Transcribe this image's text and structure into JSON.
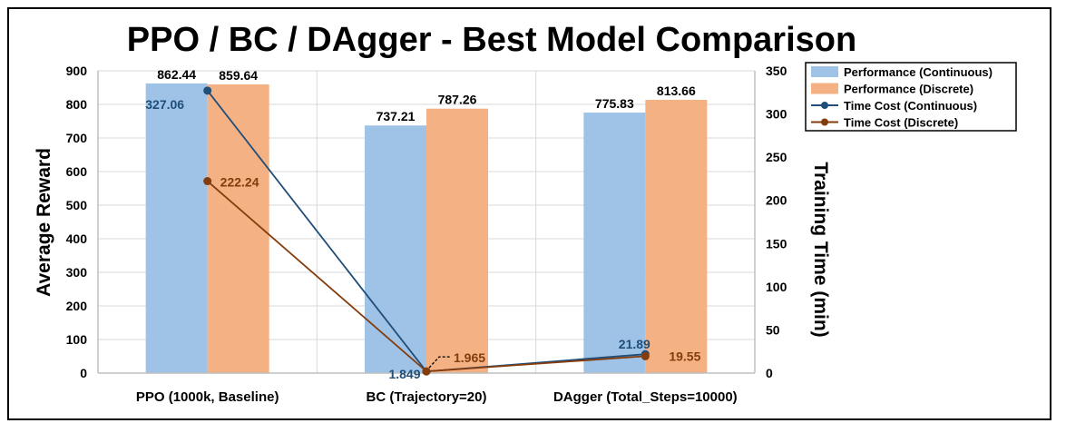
{
  "chart_data": {
    "type": "bar+line",
    "title": "PPO / BC / DAgger - Best Model Comparison",
    "ylabel": "Average Reward",
    "y2label": "Training Time (min)",
    "ylim": [
      0,
      900
    ],
    "y2lim": [
      0,
      350
    ],
    "yticks": [
      0,
      100,
      200,
      300,
      400,
      500,
      600,
      700,
      800,
      900
    ],
    "y2ticks": [
      0,
      50,
      100,
      150,
      200,
      250,
      300,
      350
    ],
    "categories": [
      "PPO (1000k, Baseline)",
      "BC (Trajectory=20)",
      "DAgger (Total_Steps=10000)"
    ],
    "bar_series": [
      {
        "name": "Performance (Continuous)",
        "values": [
          862.44,
          737.21,
          775.83
        ],
        "labels": [
          "862.44",
          "737.21",
          "775.83"
        ],
        "color": "#9fc3e7"
      },
      {
        "name": "Performance (Discrete)",
        "values": [
          859.64,
          787.26,
          813.66
        ],
        "labels": [
          "859.64",
          "787.26",
          "813.66"
        ],
        "color": "#f4b183"
      }
    ],
    "line_series": [
      {
        "name": "Time Cost (Continuous)",
        "values": [
          327.06,
          1.849,
          21.89
        ],
        "labels": [
          "327.06",
          "1.849",
          "21.89"
        ],
        "color": "#1f4e79"
      },
      {
        "name": "Time Cost (Discrete)",
        "values": [
          222.24,
          1.965,
          19.55
        ],
        "labels": [
          "222.24",
          "1.965",
          "19.55"
        ],
        "color": "#843c0c"
      }
    ],
    "grid": true,
    "legend": "top-right"
  }
}
